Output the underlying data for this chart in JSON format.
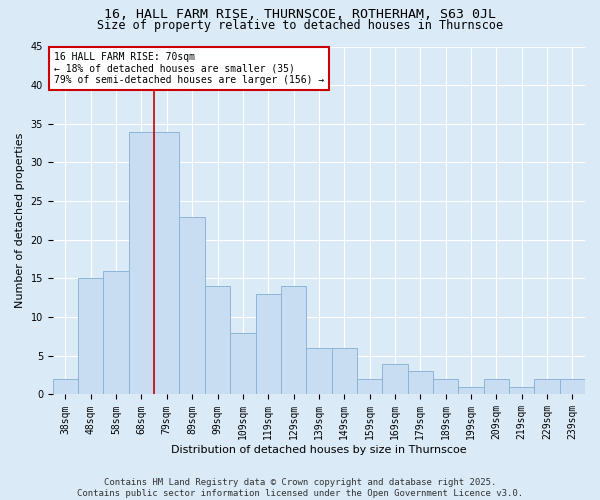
{
  "title_line1": "16, HALL FARM RISE, THURNSCOE, ROTHERHAM, S63 0JL",
  "title_line2": "Size of property relative to detached houses in Thurnscoe",
  "xlabel": "Distribution of detached houses by size in Thurnscoe",
  "ylabel": "Number of detached properties",
  "categories": [
    "38sqm",
    "48sqm",
    "58sqm",
    "68sqm",
    "79sqm",
    "89sqm",
    "99sqm",
    "109sqm",
    "119sqm",
    "129sqm",
    "139sqm",
    "149sqm",
    "159sqm",
    "169sqm",
    "179sqm",
    "189sqm",
    "199sqm",
    "209sqm",
    "219sqm",
    "229sqm",
    "239sqm"
  ],
  "values": [
    2,
    15,
    16,
    34,
    34,
    23,
    14,
    8,
    13,
    14,
    6,
    6,
    2,
    4,
    3,
    2,
    1,
    2,
    1,
    2,
    2
  ],
  "bar_color": "#c9ddf2",
  "bar_edge_color": "#8db4d9",
  "background_color": "#daeaf7",
  "grid_color": "#ffffff",
  "vline_x": 3.5,
  "vline_color": "#cc0000",
  "annotation_text": "16 HALL FARM RISE: 70sqm\n← 18% of detached houses are smaller (35)\n79% of semi-detached houses are larger (156) →",
  "annotation_box_facecolor": "#ffffff",
  "annotation_box_edgecolor": "#cc0000",
  "ylim": [
    0,
    45
  ],
  "yticks": [
    0,
    5,
    10,
    15,
    20,
    25,
    30,
    35,
    40,
    45
  ],
  "footer_text": "Contains HM Land Registry data © Crown copyright and database right 2025.\nContains public sector information licensed under the Open Government Licence v3.0.",
  "title_fontsize": 9.5,
  "subtitle_fontsize": 8.5,
  "axis_label_fontsize": 8,
  "tick_fontsize": 7,
  "annotation_fontsize": 7,
  "footer_fontsize": 6.5
}
